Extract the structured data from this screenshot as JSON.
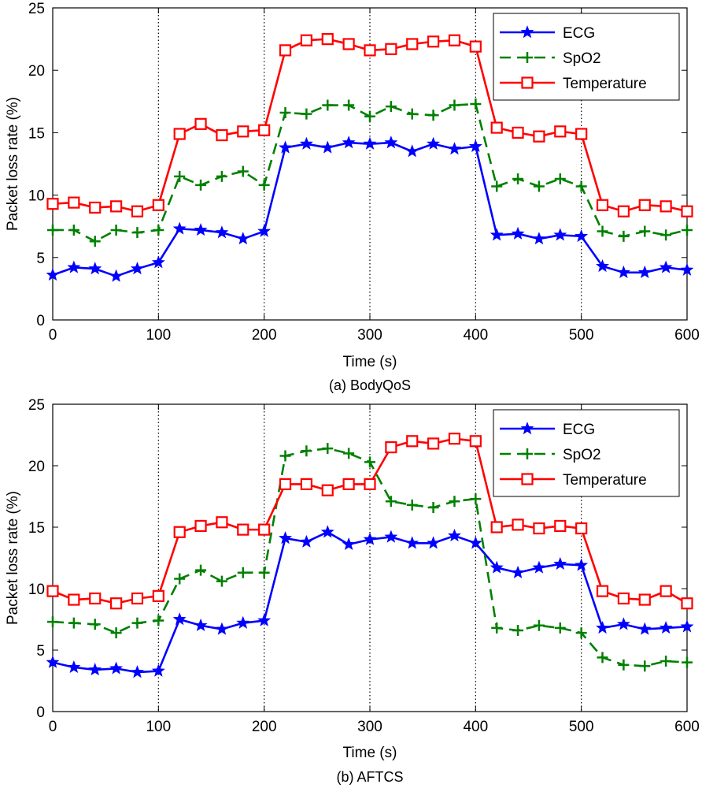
{
  "chart_data": [
    {
      "type": "line",
      "caption": "(a) BodyQoS",
      "xlabel": "Time (s)",
      "ylabel": "Packet loss rate (%)",
      "xlim": [
        0,
        600
      ],
      "ylim": [
        0,
        25
      ],
      "xticks": [
        0,
        100,
        200,
        300,
        400,
        500,
        600
      ],
      "yticks": [
        0,
        5,
        10,
        15,
        20,
        25
      ],
      "vlines": [
        100,
        200,
        300,
        400,
        500
      ],
      "legend_position": "top-right",
      "x": [
        0,
        20,
        40,
        60,
        80,
        100,
        120,
        140,
        160,
        180,
        200,
        220,
        240,
        260,
        280,
        300,
        320,
        340,
        360,
        380,
        400,
        420,
        440,
        460,
        480,
        500,
        520,
        540,
        560,
        580,
        600
      ],
      "series": [
        {
          "name": "ECG",
          "color": "#0000ff",
          "marker": "star",
          "dash": "solid",
          "values": [
            3.6,
            4.2,
            4.1,
            3.5,
            4.1,
            4.6,
            7.3,
            7.2,
            7.0,
            6.5,
            7.1,
            13.8,
            14.1,
            13.8,
            14.2,
            14.1,
            14.2,
            13.5,
            14.1,
            13.7,
            13.9,
            6.8,
            6.9,
            6.5,
            6.8,
            6.7,
            4.3,
            3.8,
            3.8,
            4.2,
            4.0
          ]
        },
        {
          "name": "SpO2",
          "color": "#008000",
          "marker": "plus",
          "dash": "dashed",
          "values": [
            7.2,
            7.2,
            6.3,
            7.2,
            7.0,
            7.2,
            11.5,
            10.8,
            11.5,
            11.9,
            10.8,
            16.6,
            16.5,
            17.2,
            17.2,
            16.3,
            17.1,
            16.5,
            16.4,
            17.2,
            17.3,
            10.7,
            11.3,
            10.7,
            11.3,
            10.7,
            7.1,
            6.7,
            7.1,
            6.8,
            7.2
          ]
        },
        {
          "name": "Temperature",
          "color": "#ff0000",
          "marker": "square",
          "dash": "solid",
          "values": [
            9.3,
            9.4,
            9.0,
            9.1,
            8.7,
            9.2,
            14.9,
            15.7,
            14.8,
            15.1,
            15.2,
            21.6,
            22.4,
            22.5,
            22.1,
            21.6,
            21.7,
            22.1,
            22.3,
            22.4,
            21.9,
            15.4,
            15.0,
            14.7,
            15.1,
            14.9,
            9.2,
            8.7,
            9.2,
            9.1,
            8.7
          ]
        }
      ]
    },
    {
      "type": "line",
      "caption": "(b) AFTCS",
      "xlabel": "Time (s)",
      "ylabel": "Packet loss rate (%)",
      "xlim": [
        0,
        600
      ],
      "ylim": [
        0,
        25
      ],
      "xticks": [
        0,
        100,
        200,
        300,
        400,
        500,
        600
      ],
      "yticks": [
        0,
        5,
        10,
        15,
        20,
        25
      ],
      "vlines": [
        100,
        200,
        300,
        400,
        500
      ],
      "legend_position": "top-right",
      "x": [
        0,
        20,
        40,
        60,
        80,
        100,
        120,
        140,
        160,
        180,
        200,
        220,
        240,
        260,
        280,
        300,
        320,
        340,
        360,
        380,
        400,
        420,
        440,
        460,
        480,
        500,
        520,
        540,
        560,
        580,
        600
      ],
      "series": [
        {
          "name": "ECG",
          "color": "#0000ff",
          "marker": "star",
          "dash": "solid",
          "values": [
            4.0,
            3.6,
            3.4,
            3.5,
            3.2,
            3.3,
            7.5,
            7.0,
            6.7,
            7.2,
            7.4,
            14.1,
            13.8,
            14.6,
            13.6,
            14.0,
            14.2,
            13.7,
            13.7,
            14.3,
            13.7,
            11.7,
            11.3,
            11.7,
            12.0,
            11.9,
            6.8,
            7.1,
            6.7,
            6.8,
            6.9
          ]
        },
        {
          "name": "SpO2",
          "color": "#008000",
          "marker": "plus",
          "dash": "dashed",
          "values": [
            7.3,
            7.2,
            7.1,
            6.4,
            7.2,
            7.4,
            10.8,
            11.5,
            10.6,
            11.3,
            11.3,
            20.8,
            21.2,
            21.4,
            21.0,
            20.3,
            17.1,
            16.8,
            16.6,
            17.1,
            17.3,
            6.8,
            6.6,
            7.0,
            6.8,
            6.4,
            4.4,
            3.8,
            3.7,
            4.1,
            4.0
          ]
        },
        {
          "name": "Temperature",
          "color": "#ff0000",
          "marker": "square",
          "dash": "solid",
          "values": [
            9.8,
            9.1,
            9.2,
            8.8,
            9.2,
            9.4,
            14.6,
            15.1,
            15.4,
            14.8,
            14.8,
            18.5,
            18.5,
            18.0,
            18.5,
            18.5,
            21.5,
            22.0,
            21.8,
            22.2,
            22.0,
            15.0,
            15.2,
            14.9,
            15.1,
            14.9,
            9.8,
            9.2,
            9.1,
            9.8,
            8.8
          ]
        }
      ]
    }
  ]
}
